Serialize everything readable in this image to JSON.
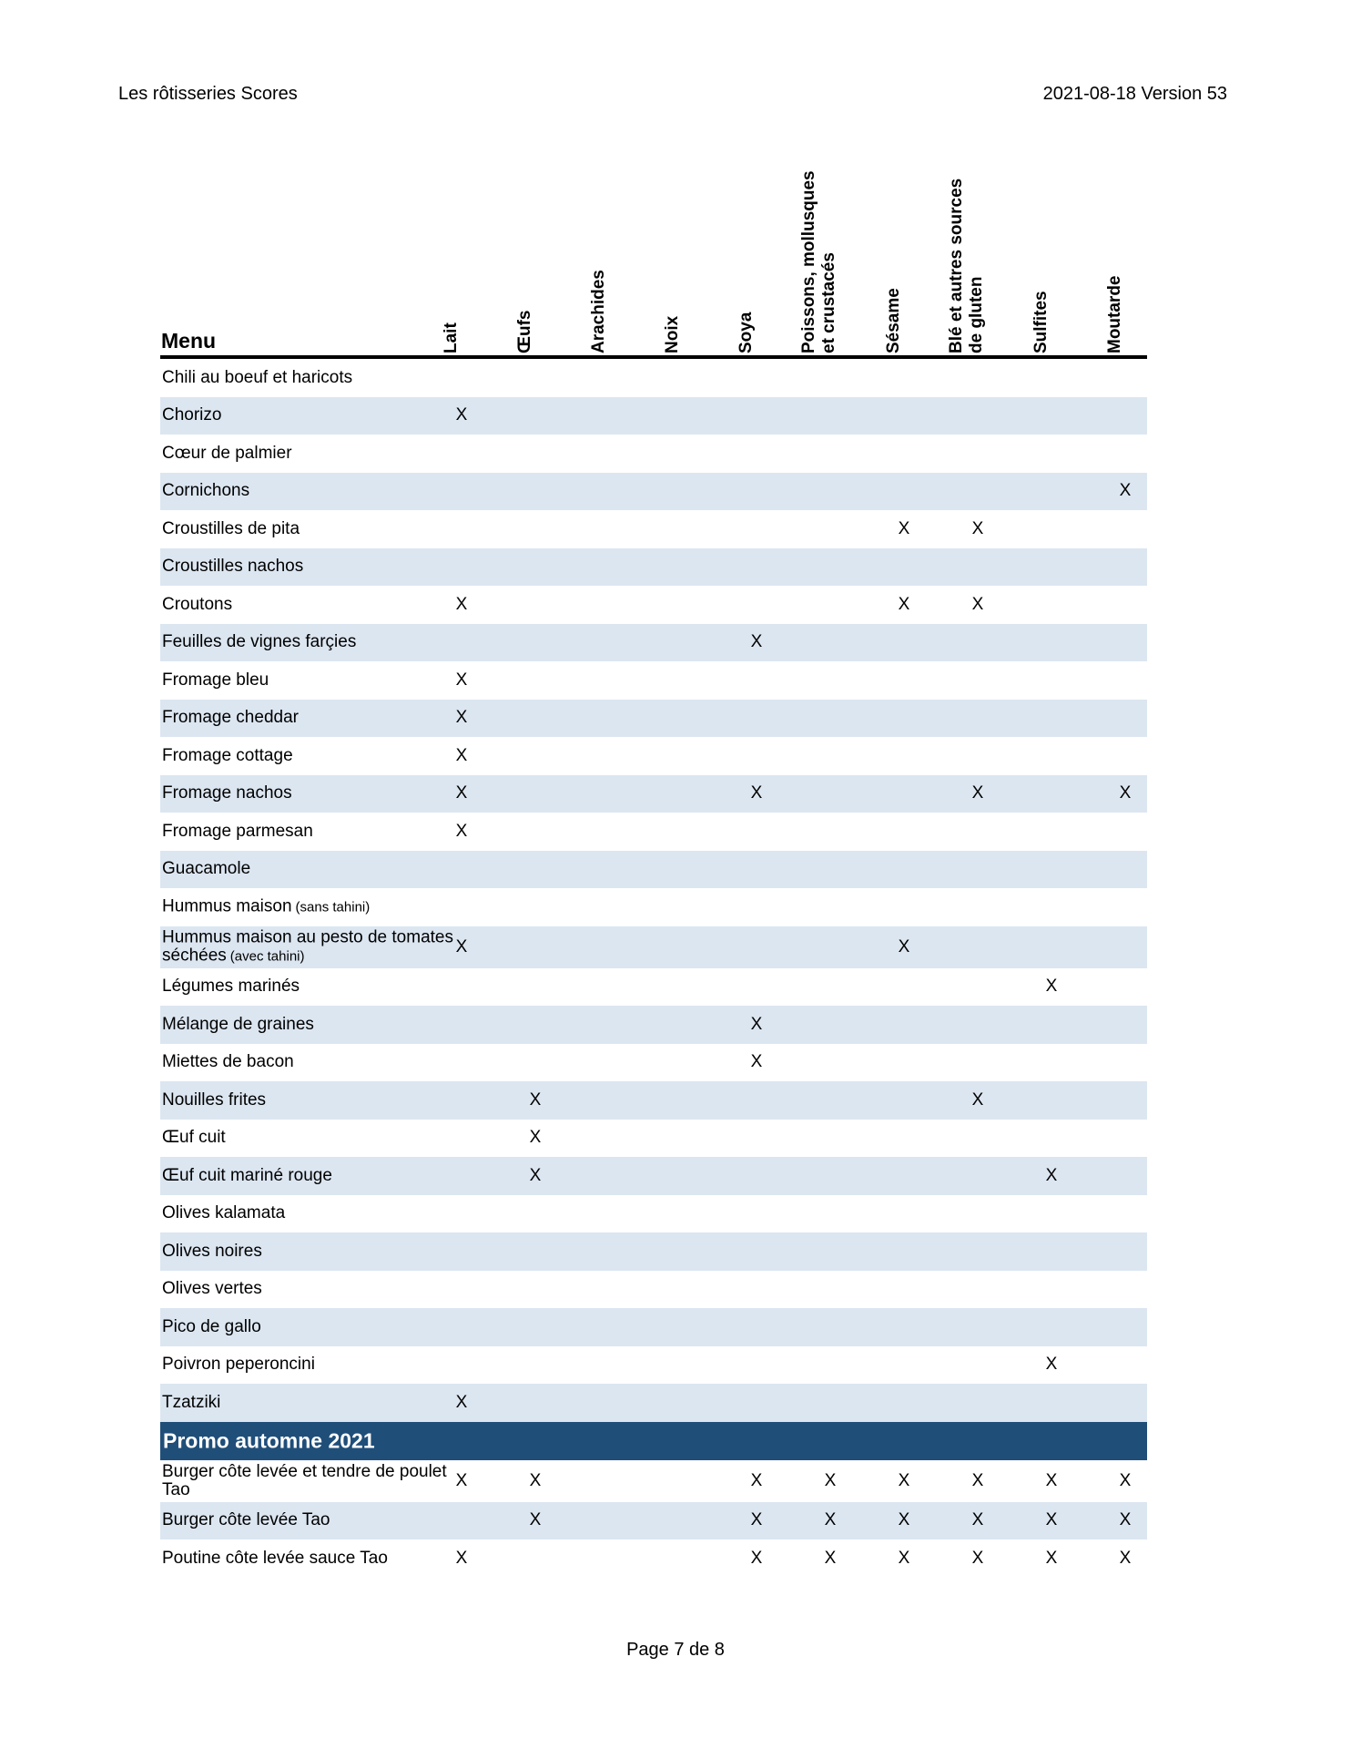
{
  "page_header": {
    "left": "Les rôtisseries Scores",
    "right": "2021-08-18 Version 53"
  },
  "colors": {
    "stripe_row": "#dce6f1",
    "section_banner": "#1f4e79",
    "text": "#000000"
  },
  "table": {
    "menu_label": "Menu",
    "mark": "X",
    "columns": [
      {
        "key": "lait",
        "lines": [
          "Lait"
        ]
      },
      {
        "key": "oeufs",
        "lines": [
          "Œufs"
        ]
      },
      {
        "key": "arachides",
        "lines": [
          "Arachides"
        ]
      },
      {
        "key": "noix",
        "lines": [
          "Noix"
        ]
      },
      {
        "key": "soya",
        "lines": [
          "Soya"
        ]
      },
      {
        "key": "poissons",
        "lines": [
          "Poissons, mollusques",
          "et crustacés"
        ]
      },
      {
        "key": "sesame",
        "lines": [
          "Sésame"
        ]
      },
      {
        "key": "ble",
        "lines": [
          "Blé et autres sources",
          "de gluten"
        ]
      },
      {
        "key": "sulfites",
        "lines": [
          "Sulfites"
        ]
      },
      {
        "key": "moutarde",
        "lines": [
          "Moutarde"
        ]
      }
    ],
    "rows": [
      {
        "label": "Chili au boeuf et haricots",
        "marks": []
      },
      {
        "label": "Chorizo",
        "marks": [
          "lait"
        ]
      },
      {
        "label": "Cœur de palmier",
        "marks": []
      },
      {
        "label": "Cornichons",
        "marks": [
          "moutarde"
        ]
      },
      {
        "label": "Croustilles de pita",
        "marks": [
          "sesame",
          "ble"
        ]
      },
      {
        "label": "Croustilles nachos",
        "marks": []
      },
      {
        "label": "Croutons",
        "marks": [
          "lait",
          "sesame",
          "ble"
        ]
      },
      {
        "label": "Feuilles de vignes farçies",
        "marks": [
          "soya"
        ]
      },
      {
        "label": "Fromage bleu",
        "marks": [
          "lait"
        ]
      },
      {
        "label": "Fromage cheddar",
        "marks": [
          "lait"
        ]
      },
      {
        "label": "Fromage cottage",
        "marks": [
          "lait"
        ]
      },
      {
        "label": "Fromage nachos",
        "marks": [
          "lait",
          "soya",
          "ble",
          "moutarde"
        ]
      },
      {
        "label": "Fromage parmesan",
        "marks": [
          "lait"
        ]
      },
      {
        "label": "Guacamole",
        "marks": []
      },
      {
        "label": "Hummus maison",
        "note": "(sans tahini)",
        "marks": []
      },
      {
        "label": "Hummus maison au pesto de tomates",
        "label2": "séchées",
        "note2": "(avec tahini)",
        "marks": [
          "lait",
          "sesame"
        ]
      },
      {
        "label": "Légumes marinés",
        "marks": [
          "sulfites"
        ]
      },
      {
        "label": "Mélange de graines",
        "marks": [
          "soya"
        ]
      },
      {
        "label": "Miettes de bacon",
        "marks": [
          "soya"
        ]
      },
      {
        "label": "Nouilles frites",
        "marks": [
          "oeufs",
          "ble"
        ]
      },
      {
        "label": "Œuf cuit",
        "marks": [
          "oeufs"
        ]
      },
      {
        "label": "Œuf cuit mariné rouge",
        "marks": [
          "oeufs",
          "sulfites"
        ]
      },
      {
        "label": "Olives kalamata",
        "marks": []
      },
      {
        "label": "Olives noires",
        "marks": []
      },
      {
        "label": "Olives vertes",
        "marks": []
      },
      {
        "label": "Pico de gallo",
        "marks": []
      },
      {
        "label": "Poivron peperoncini",
        "marks": [
          "sulfites"
        ]
      },
      {
        "label": "Tzatziki",
        "marks": [
          "lait"
        ]
      },
      {
        "section": true,
        "label": "Promo automne 2021"
      },
      {
        "label": "Burger côte levée et tendre de poulet",
        "label2": "Tao",
        "marks": [
          "lait",
          "oeufs",
          "soya",
          "poissons",
          "sesame",
          "ble",
          "sulfites",
          "moutarde"
        ]
      },
      {
        "label": "Burger côte levée Tao",
        "marks": [
          "oeufs",
          "soya",
          "poissons",
          "sesame",
          "ble",
          "sulfites",
          "moutarde"
        ]
      },
      {
        "label": "Poutine côte levée sauce Tao",
        "marks": [
          "lait",
          "soya",
          "poissons",
          "sesame",
          "ble",
          "sulfites",
          "moutarde"
        ]
      }
    ]
  },
  "footer": {
    "text": "Page 7 de 8"
  }
}
